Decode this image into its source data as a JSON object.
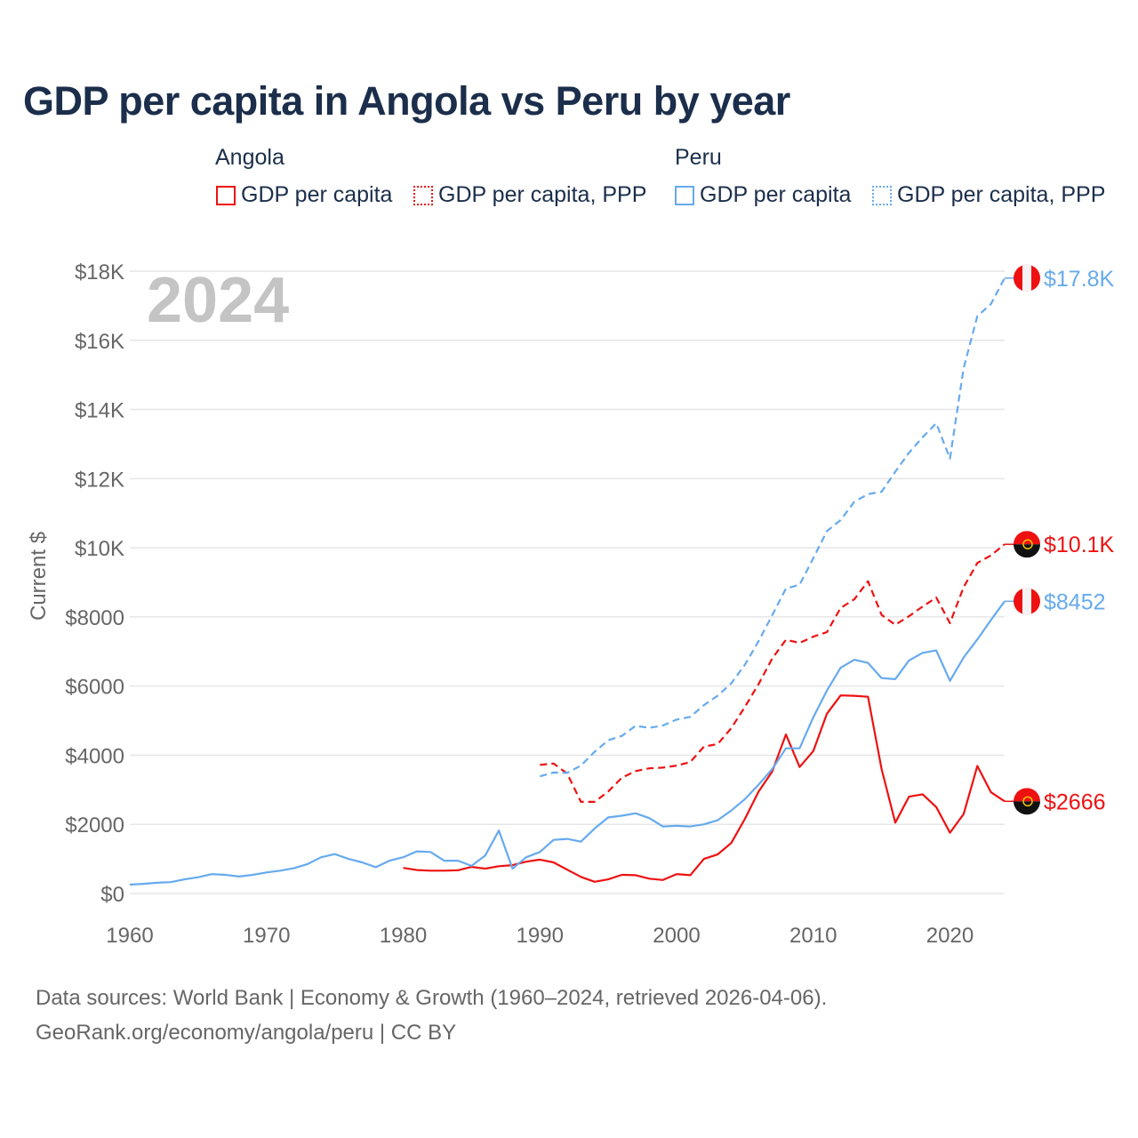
{
  "title": "GDP per capita in Angola vs Peru by year",
  "legend": {
    "groups": [
      {
        "name": "Angola",
        "items": [
          "GDP per capita",
          "GDP per capita, PPP"
        ]
      },
      {
        "name": "Peru",
        "items": [
          "GDP per capita",
          "GDP per capita, PPP"
        ]
      }
    ]
  },
  "year_watermark": "2024",
  "footer": {
    "line1": "Data sources: World Bank | Economy & Growth (1960–2024, retrieved 2026-04-06).",
    "line2": "GeoRank.org/economy/angola/peru | CC BY"
  },
  "colors": {
    "angola": "#ee1111",
    "peru": "#66aaee",
    "grid": "#e6e6e6",
    "axis_text": "#666666",
    "title": "#1b2e4b"
  },
  "chart_data": {
    "type": "line",
    "title": "GDP per capita in Angola vs Peru by year",
    "xlabel": "",
    "ylabel": "Current $",
    "xlim": [
      1960,
      2024
    ],
    "ylim": [
      0,
      18000
    ],
    "x_ticks": [
      1960,
      1970,
      1980,
      1990,
      2000,
      2010,
      2020
    ],
    "y_ticks": [
      0,
      2000,
      4000,
      6000,
      8000,
      10000,
      12000,
      14000,
      16000,
      18000
    ],
    "y_tick_labels": [
      "$0",
      "$2000",
      "$4000",
      "$6000",
      "$8000",
      "$10K",
      "$12K",
      "$14K",
      "$16K",
      "$18K"
    ],
    "grid": true,
    "legend_position": "top",
    "series": [
      {
        "name": "Angola GDP per capita",
        "country": "angola",
        "dashed": false,
        "start": 1980,
        "end_label": "$2666",
        "values": [
          740,
          680,
          660,
          660,
          670,
          770,
          720,
          790,
          820,
          920,
          980,
          900,
          690,
          480,
          340,
          410,
          540,
          530,
          430,
          390,
          560,
          530,
          1000,
          1130,
          1460,
          2160,
          2950,
          3530,
          4600,
          3660,
          4120,
          5200,
          5730,
          5720,
          5690,
          3600,
          2050,
          2800,
          2870,
          2500,
          1760,
          2300,
          3690,
          2930,
          2666
        ]
      },
      {
        "name": "Angola GDP per capita, PPP",
        "country": "angola",
        "dashed": true,
        "start": 1990,
        "end_label": "$10.1K",
        "values": [
          3720,
          3760,
          3470,
          2650,
          2650,
          2950,
          3350,
          3540,
          3620,
          3640,
          3700,
          3800,
          4250,
          4320,
          4780,
          5400,
          6060,
          6800,
          7340,
          7250,
          7430,
          7560,
          8260,
          8510,
          9030,
          8060,
          7770,
          8020,
          8300,
          8560,
          7820,
          8860,
          9560,
          9780,
          10100
        ]
      },
      {
        "name": "Peru GDP per capita",
        "country": "peru",
        "dashed": false,
        "start": 1960,
        "end_label": "$8452",
        "values": [
          257,
          280,
          310,
          330,
          410,
          470,
          560,
          540,
          490,
          540,
          610,
          660,
          730,
          850,
          1050,
          1140,
          1000,
          900,
          760,
          950,
          1050,
          1220,
          1200,
          950,
          950,
          800,
          1100,
          1820,
          720,
          1050,
          1200,
          1550,
          1580,
          1500,
          1880,
          2200,
          2250,
          2320,
          2180,
          1940,
          1960,
          1940,
          2000,
          2120,
          2400,
          2730,
          3150,
          3600,
          4200,
          4200,
          5100,
          5870,
          6530,
          6760,
          6670,
          6230,
          6200,
          6740,
          6960,
          7030,
          6150,
          6830,
          7350,
          7910,
          8452
        ]
      },
      {
        "name": "Peru GDP per capita, PPP",
        "country": "peru",
        "dashed": true,
        "start": 1990,
        "end_label": "$17.8K",
        "values": [
          3390,
          3500,
          3490,
          3700,
          4100,
          4430,
          4560,
          4850,
          4790,
          4860,
          5030,
          5110,
          5450,
          5720,
          6080,
          6620,
          7300,
          8050,
          8820,
          8930,
          9700,
          10480,
          10800,
          11330,
          11550,
          11620,
          12200,
          12750,
          13200,
          13600,
          12580,
          15200,
          16700,
          17050,
          17800
        ]
      }
    ]
  }
}
